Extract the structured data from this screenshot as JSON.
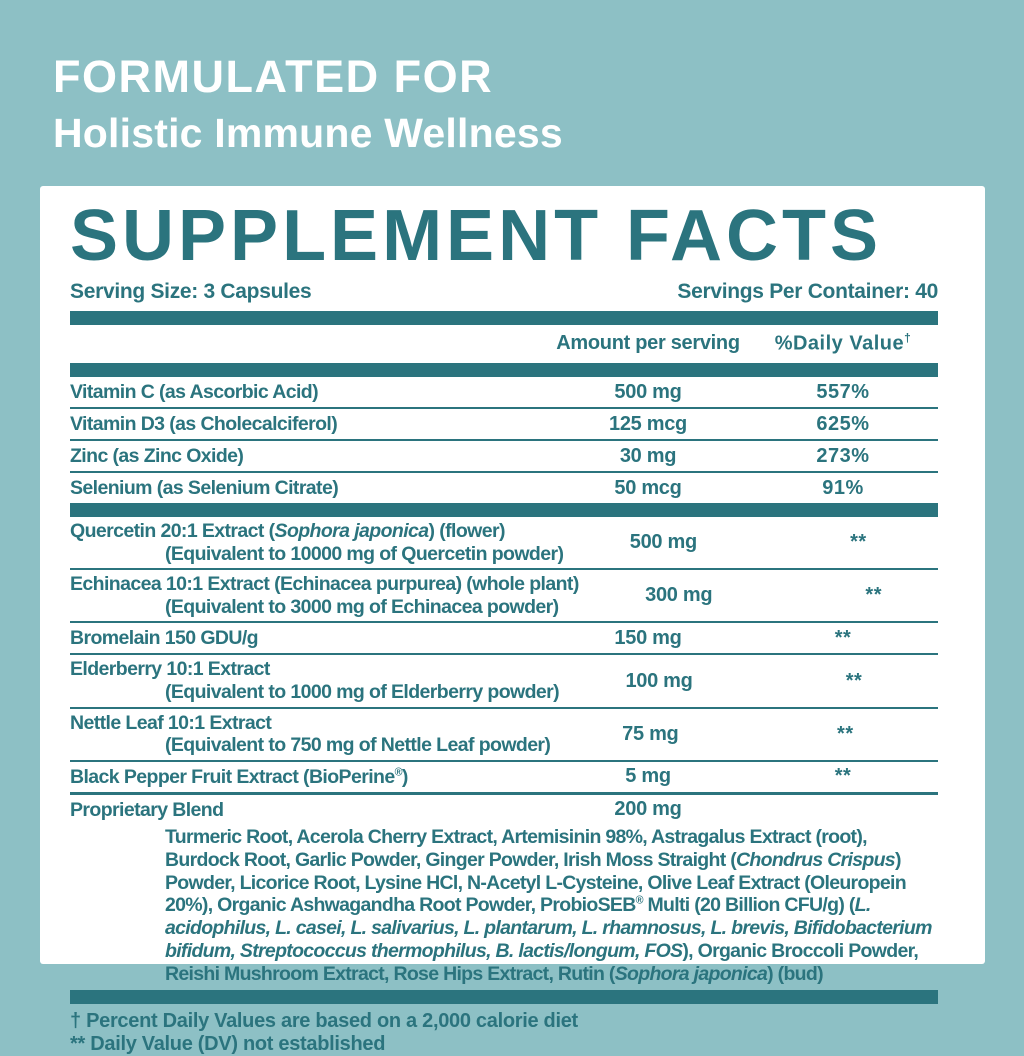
{
  "colors": {
    "background": "#8dc0c5",
    "panel": "#ffffff",
    "teal": "#2b747e",
    "header_text": "#ffffff"
  },
  "header": {
    "line1": "FORMULATED FOR",
    "line2": "Holistic Immune Wellness"
  },
  "supplement_facts": {
    "title": "SUPPLEMENT FACTS",
    "serving_size": "Serving Size: 3 Capsules",
    "servings_per_container": "Servings Per Container: 40",
    "col_amount": "Amount per serving",
    "col_dv": "%Daily Value",
    "col_dv_sup": "†",
    "sections": [
      {
        "rows": [
          {
            "name": [
              {
                "t": "Vitamin C (as Ascorbic Acid)"
              }
            ],
            "amount": "500 mg",
            "dv": "557%"
          },
          {
            "name": [
              {
                "t": "Vitamin D3 (as Cholecalciferol)"
              }
            ],
            "amount": "125 mcg",
            "dv": "625%"
          },
          {
            "name": [
              {
                "t": "Zinc (as Zinc Oxide)"
              }
            ],
            "amount": "30 mg",
            "dv": "273%"
          },
          {
            "name": [
              {
                "t": "Selenium (as Selenium Citrate)"
              }
            ],
            "amount": "50 mcg",
            "dv": "91%"
          }
        ]
      },
      {
        "rows": [
          {
            "name": [
              {
                "t": "Quercetin 20:1 Extract ("
              },
              {
                "t": "Sophora japonica",
                "i": true
              },
              {
                "t": ") (flower)"
              }
            ],
            "sub": "(Equivalent to 10000 mg of Quercetin powder)",
            "amount": "500 mg",
            "dv": "**"
          },
          {
            "name": [
              {
                "t": "Echinacea 10:1 Extract (Echinacea purpurea) (whole plant)"
              }
            ],
            "sub": "(Equivalent to 3000 mg of Echinacea powder)",
            "amount": "300 mg",
            "dv": "**"
          },
          {
            "name": [
              {
                "t": "Bromelain 150 GDU/g"
              }
            ],
            "amount": "150 mg",
            "dv": "**"
          },
          {
            "name": [
              {
                "t": "Elderberry 10:1 Extract"
              }
            ],
            "sub": "(Equivalent to 1000 mg of Elderberry powder)",
            "amount": "100 mg",
            "dv": "**"
          },
          {
            "name": [
              {
                "t": "Nettle Leaf 10:1 Extract"
              }
            ],
            "sub": "(Equivalent to 750 mg of Nettle Leaf powder)",
            "amount": "75 mg",
            "dv": "**"
          },
          {
            "name": [
              {
                "t": "Black Pepper Fruit Extract (BioPerine"
              },
              {
                "t": "®",
                "sup": true
              },
              {
                "t": ")"
              }
            ],
            "amount": "5 mg",
            "dv": "**"
          }
        ]
      },
      {
        "rows": [
          {
            "name": [
              {
                "t": "Proprietary Blend"
              }
            ],
            "amount": "200 mg",
            "dv": ""
          }
        ]
      }
    ],
    "blend_description": [
      {
        "t": "Turmeric Root, Acerola Cherry Extract, Artemisinin 98%, Astragalus Extract (root), Burdock Root, Garlic Powder, Ginger Powder, Irish Moss Straight ("
      },
      {
        "t": "Chondrus Crispus",
        "i": true
      },
      {
        "t": ") Powder, Licorice Root, Lysine HCl, N-Acetyl L-Cysteine, Olive Leaf Extract (Oleuropein 20%), Organic Ashwagandha Root Powder, ProbioSEB"
      },
      {
        "t": "®",
        "sup": true
      },
      {
        "t": " Multi (20 Billion CFU/g) ("
      },
      {
        "t": "L. acidophilus, L. casei, L. salivarius, L. plantarum, L. rhamnosus, L. brevis, Bifidobacterium bifidum, Streptococcus thermophilus, B. lactis/longum, FOS",
        "i": true
      },
      {
        "t": "), Organic Broccoli Powder, Reishi Mushroom Extract, Rose Hips Extract, Rutin ("
      },
      {
        "t": "Sophora japonica",
        "i": true
      },
      {
        "t": ") (bud)"
      }
    ],
    "footnotes": [
      "† Percent Daily Values are based on a 2,000 calorie diet",
      "** Daily Value (DV) not established"
    ]
  }
}
